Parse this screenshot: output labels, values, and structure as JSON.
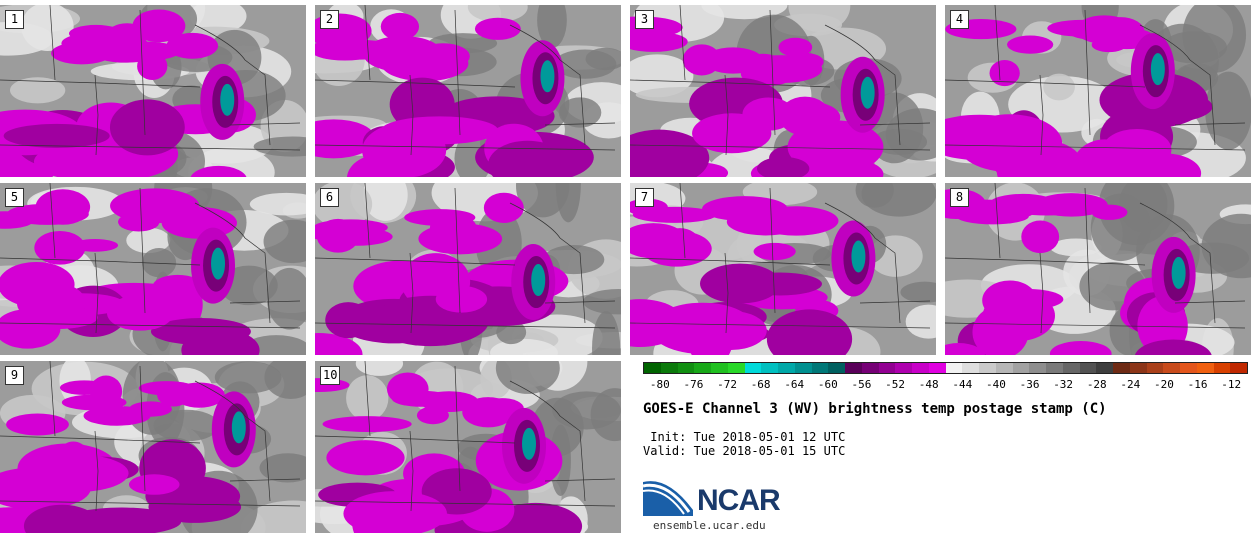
{
  "panels": [
    {
      "label": "1"
    },
    {
      "label": "2"
    },
    {
      "label": "3"
    },
    {
      "label": "4"
    },
    {
      "label": "5"
    },
    {
      "label": "6"
    },
    {
      "label": "7"
    },
    {
      "label": "8"
    },
    {
      "label": "9"
    },
    {
      "label": "10"
    }
  ],
  "colorbar": {
    "colors": [
      "#006400",
      "#0b7a0b",
      "#118f11",
      "#18a818",
      "#20c020",
      "#28d828",
      "#00dada",
      "#00c0c0",
      "#00a8a8",
      "#009090",
      "#007878",
      "#006060",
      "#5a005a",
      "#760076",
      "#920092",
      "#ae00ae",
      "#c800c8",
      "#e000e0",
      "#f2f2f2",
      "#dedede",
      "#cacaca",
      "#b6b6b6",
      "#a2a2a2",
      "#8e8e8e",
      "#7a7a7a",
      "#666666",
      "#525252",
      "#3e3e3e",
      "#6e2a14",
      "#8c3518",
      "#aa401a",
      "#c84b1c",
      "#e4561c",
      "#f06010",
      "#d84000",
      "#c02800"
    ],
    "ticks": [
      "-80",
      "-76",
      "-72",
      "-68",
      "-64",
      "-60",
      "-56",
      "-52",
      "-48",
      "-44",
      "-40",
      "-36",
      "-32",
      "-28",
      "-24",
      "-20",
      "-16",
      "-12"
    ]
  },
  "title": "GOES-E Channel 3 (WV) brightness temp postage stamp (C)",
  "init": " Init: Tue 2018-05-01 12 UTC",
  "valid": "Valid: Tue 2018-05-01 15 UTC",
  "logo_text": "NCAR",
  "url": "ensemble.ucar.edu"
}
